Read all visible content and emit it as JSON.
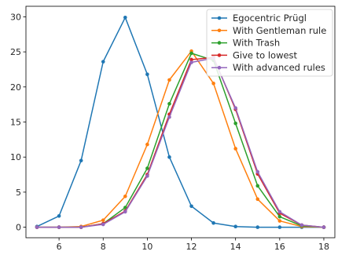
{
  "chart_data": {
    "type": "line",
    "title": "",
    "xlabel": "",
    "ylabel": "",
    "xlim": [
      4.5,
      18.5
    ],
    "ylim": [
      -1.5,
      31.5
    ],
    "xticks": [
      6,
      8,
      10,
      12,
      14,
      16,
      18
    ],
    "yticks": [
      0,
      5,
      10,
      15,
      20,
      25,
      30
    ],
    "grid": false,
    "legend_position": "top-right",
    "x": [
      5,
      6,
      7,
      8,
      9,
      10,
      11,
      12,
      13,
      14,
      15,
      16,
      17,
      18
    ],
    "series": [
      {
        "name": "Egocentric Prügl",
        "color": "#1f77b4",
        "values": [
          0.1,
          1.6,
          9.5,
          23.6,
          29.9,
          21.8,
          10.0,
          3.0,
          0.6,
          0.1,
          0.0,
          0.0,
          0.0,
          0.0
        ]
      },
      {
        "name": "With Gentleman rule",
        "color": "#ff7f0e",
        "values": [
          0.0,
          0.0,
          0.1,
          1.0,
          4.4,
          11.8,
          21.0,
          25.1,
          20.5,
          11.2,
          4.0,
          0.9,
          0.1,
          0.0
        ]
      },
      {
        "name": "With Trash",
        "color": "#2ca02c",
        "values": [
          0.0,
          0.0,
          0.0,
          0.5,
          2.8,
          8.4,
          17.6,
          24.8,
          23.8,
          14.8,
          5.9,
          1.5,
          0.2,
          0.0
        ]
      },
      {
        "name": "Give to lowest",
        "color": "#d62728",
        "values": [
          0.0,
          0.0,
          0.0,
          0.5,
          2.3,
          7.5,
          16.1,
          23.9,
          24.2,
          16.8,
          7.6,
          2.0,
          0.3,
          0.0
        ]
      },
      {
        "name": "With advanced rules",
        "color": "#9467bd",
        "values": [
          0.0,
          0.0,
          0.0,
          0.4,
          2.2,
          7.3,
          15.7,
          23.5,
          24.1,
          17.0,
          7.9,
          2.2,
          0.3,
          0.0
        ]
      }
    ]
  }
}
